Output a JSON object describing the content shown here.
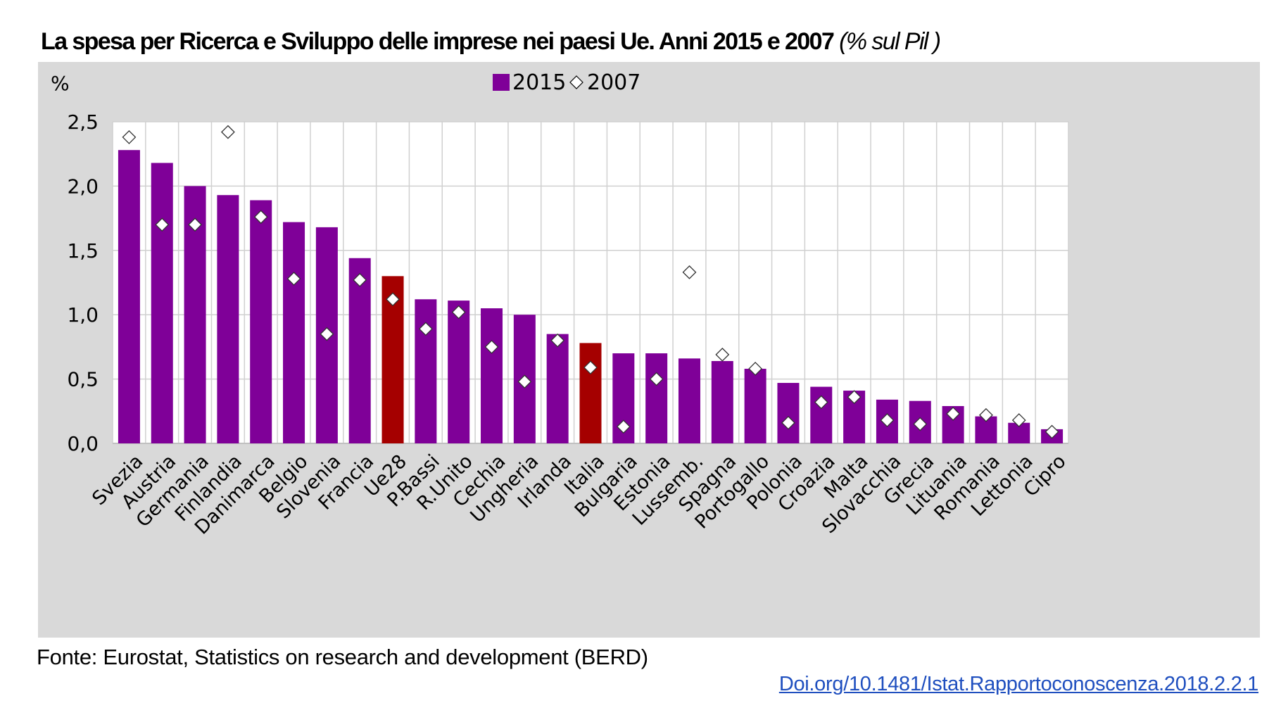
{
  "chart_data": {
    "type": "bar",
    "title": "La spesa per Ricerca e Sviluppo delle imprese nei paesi Ue. Anni 2015 e 2007",
    "subtitle": "(% sul Pil )",
    "ylabel": "%",
    "ylim": [
      0,
      2.5
    ],
    "yticks": [
      "0,0",
      "0,5",
      "1,0",
      "1,5",
      "2,0",
      "2,5"
    ],
    "legend_position": "top-center",
    "grid": true,
    "categories": [
      "Svezia",
      "Austria",
      "Germania",
      "Finlandia",
      "Danimarca",
      "Belgio",
      "Slovenia",
      "Francia",
      "Ue28",
      "P.Bassi",
      "R.Unito",
      "Cechia",
      "Ungheria",
      "Irlanda",
      "Italia",
      "Bulgaria",
      "Estonia",
      "Lussemb.",
      "Spagna",
      "Portogallo",
      "Polonia",
      "Croazia",
      "Malta",
      "Slovacchia",
      "Grecia",
      "Lituania",
      "Romania",
      "Lettonia",
      "Cipro"
    ],
    "highlighted_categories": [
      "Ue28",
      "Italia"
    ],
    "series": [
      {
        "name": "2015",
        "kind": "bar",
        "color": "#7f0098",
        "highlight_color": "#a50000",
        "values": [
          2.28,
          2.18,
          2.0,
          1.93,
          1.89,
          1.72,
          1.68,
          1.44,
          1.3,
          1.12,
          1.11,
          1.05,
          1.0,
          0.85,
          0.78,
          0.7,
          0.7,
          0.66,
          0.64,
          0.58,
          0.47,
          0.44,
          0.41,
          0.34,
          0.33,
          0.29,
          0.21,
          0.16,
          0.11
        ]
      },
      {
        "name": "2007",
        "kind": "marker",
        "marker": "diamond",
        "values": [
          2.38,
          1.7,
          1.7,
          2.42,
          1.76,
          1.28,
          0.85,
          1.27,
          1.12,
          0.89,
          1.02,
          0.75,
          0.48,
          0.8,
          0.59,
          0.13,
          0.5,
          1.33,
          0.69,
          0.58,
          0.16,
          0.32,
          0.36,
          0.18,
          0.15,
          0.23,
          0.22,
          0.18,
          0.09
        ]
      }
    ]
  },
  "source": "Fonte: Eurostat, Statistics on research and development (BERD)",
  "doi": "Doi.org/10.1481/Istat.Rapportoconoscenza.2018.2.2.1",
  "colors": {
    "panel_background": "#d9d9d9",
    "plot_background": "#ffffff",
    "bar": "#7f0098",
    "bar_highlight": "#a50000"
  }
}
